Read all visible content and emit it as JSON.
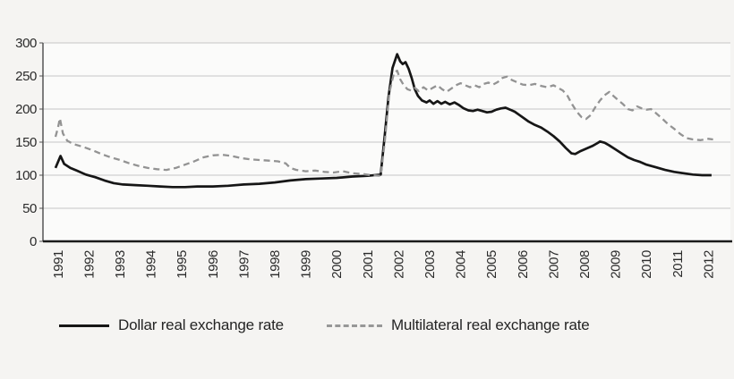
{
  "chart_data": {
    "type": "line",
    "title": "",
    "xlabel": "",
    "ylabel": "",
    "ylim": [
      0,
      300
    ],
    "yticks": [
      0,
      50,
      100,
      150,
      200,
      250,
      300
    ],
    "xticks": [
      1991,
      1992,
      1993,
      1994,
      1995,
      1996,
      1997,
      1998,
      1999,
      2000,
      2001,
      2002,
      2003,
      2004,
      2005,
      2006,
      2007,
      2008,
      2009,
      2010,
      2011,
      2012
    ],
    "grid": "horizontal",
    "legend_position": "bottom",
    "colors": {
      "background": "#f5f4f2",
      "plot_background": "#fbfbfa",
      "gridline": "#c6c6c6",
      "axis": "#1a1a1a",
      "dollar_line": "#161616",
      "multilateral_line": "#939393"
    },
    "series": [
      {
        "name": "Dollar real exchange rate",
        "style": "solid",
        "color": "#161616",
        "points": [
          [
            1991.42,
            111
          ],
          [
            1991.5,
            120
          ],
          [
            1991.58,
            129
          ],
          [
            1991.7,
            117
          ],
          [
            1991.9,
            111
          ],
          [
            1992.1,
            107
          ],
          [
            1992.4,
            101
          ],
          [
            1992.7,
            97
          ],
          [
            1993.0,
            92
          ],
          [
            1993.3,
            88
          ],
          [
            1993.6,
            86
          ],
          [
            1994.0,
            85
          ],
          [
            1994.4,
            84
          ],
          [
            1994.8,
            83
          ],
          [
            1995.2,
            82
          ],
          [
            1995.6,
            82
          ],
          [
            1996.0,
            83
          ],
          [
            1996.5,
            83
          ],
          [
            1997.0,
            84
          ],
          [
            1997.5,
            86
          ],
          [
            1998.0,
            87
          ],
          [
            1998.5,
            89
          ],
          [
            1999.0,
            92
          ],
          [
            1999.5,
            94
          ],
          [
            2000.0,
            95
          ],
          [
            2000.5,
            96
          ],
          [
            2001.0,
            98
          ],
          [
            2001.5,
            99
          ],
          [
            2001.92,
            101
          ],
          [
            2002.05,
            160
          ],
          [
            2002.17,
            218
          ],
          [
            2002.3,
            262
          ],
          [
            2002.45,
            283
          ],
          [
            2002.55,
            272
          ],
          [
            2002.63,
            268
          ],
          [
            2002.72,
            271
          ],
          [
            2002.82,
            261
          ],
          [
            2002.92,
            247
          ],
          [
            2003.02,
            230
          ],
          [
            2003.12,
            220
          ],
          [
            2003.25,
            213
          ],
          [
            2003.4,
            210
          ],
          [
            2003.5,
            213
          ],
          [
            2003.62,
            208
          ],
          [
            2003.75,
            212
          ],
          [
            2003.88,
            208
          ],
          [
            2004.0,
            211
          ],
          [
            2004.15,
            207
          ],
          [
            2004.3,
            210
          ],
          [
            2004.45,
            206
          ],
          [
            2004.6,
            201
          ],
          [
            2004.75,
            198
          ],
          [
            2004.9,
            197
          ],
          [
            2005.05,
            199
          ],
          [
            2005.2,
            197
          ],
          [
            2005.35,
            195
          ],
          [
            2005.5,
            196
          ],
          [
            2005.65,
            199
          ],
          [
            2005.8,
            201
          ],
          [
            2005.95,
            202
          ],
          [
            2006.1,
            199
          ],
          [
            2006.25,
            196
          ],
          [
            2006.4,
            191
          ],
          [
            2006.55,
            186
          ],
          [
            2006.7,
            181
          ],
          [
            2006.9,
            176
          ],
          [
            2007.1,
            172
          ],
          [
            2007.3,
            166
          ],
          [
            2007.5,
            159
          ],
          [
            2007.7,
            151
          ],
          [
            2007.9,
            141
          ],
          [
            2008.08,
            133
          ],
          [
            2008.2,
            132
          ],
          [
            2008.35,
            136
          ],
          [
            2008.55,
            140
          ],
          [
            2008.75,
            144
          ],
          [
            2008.9,
            148
          ],
          [
            2009.0,
            151
          ],
          [
            2009.15,
            149
          ],
          [
            2009.3,
            145
          ],
          [
            2009.5,
            139
          ],
          [
            2009.7,
            133
          ],
          [
            2009.9,
            127
          ],
          [
            2010.1,
            123
          ],
          [
            2010.3,
            120
          ],
          [
            2010.5,
            116
          ],
          [
            2010.8,
            112
          ],
          [
            2011.1,
            108
          ],
          [
            2011.4,
            105
          ],
          [
            2011.7,
            103
          ],
          [
            2012.0,
            101
          ],
          [
            2012.3,
            100
          ],
          [
            2012.6,
            100
          ]
        ]
      },
      {
        "name": "Multilateral real exchange rate",
        "style": "dashed",
        "color": "#939393",
        "points": [
          [
            1991.42,
            158
          ],
          [
            1991.5,
            172
          ],
          [
            1991.56,
            186
          ],
          [
            1991.66,
            163
          ],
          [
            1991.8,
            152
          ],
          [
            1992.0,
            147
          ],
          [
            1992.3,
            143
          ],
          [
            1992.6,
            138
          ],
          [
            1992.9,
            132
          ],
          [
            1993.2,
            127
          ],
          [
            1993.5,
            123
          ],
          [
            1993.8,
            118
          ],
          [
            1994.1,
            114
          ],
          [
            1994.4,
            111
          ],
          [
            1994.7,
            109
          ],
          [
            1995.0,
            108
          ],
          [
            1995.3,
            111
          ],
          [
            1995.6,
            116
          ],
          [
            1995.9,
            121
          ],
          [
            1996.2,
            127
          ],
          [
            1996.5,
            130
          ],
          [
            1996.8,
            131
          ],
          [
            1997.1,
            129
          ],
          [
            1997.4,
            126
          ],
          [
            1997.7,
            124
          ],
          [
            1998.0,
            123
          ],
          [
            1998.3,
            122
          ],
          [
            1998.6,
            121
          ],
          [
            1998.85,
            118
          ],
          [
            1999.0,
            111
          ],
          [
            1999.2,
            108
          ],
          [
            1999.5,
            106
          ],
          [
            1999.8,
            107
          ],
          [
            2000.1,
            105
          ],
          [
            2000.4,
            104
          ],
          [
            2000.7,
            106
          ],
          [
            2001.0,
            103
          ],
          [
            2001.3,
            102
          ],
          [
            2001.6,
            100
          ],
          [
            2001.92,
            99
          ],
          [
            2002.05,
            150
          ],
          [
            2002.2,
            225
          ],
          [
            2002.35,
            255
          ],
          [
            2002.45,
            258
          ],
          [
            2002.55,
            245
          ],
          [
            2002.65,
            237
          ],
          [
            2002.78,
            230
          ],
          [
            2002.9,
            228
          ],
          [
            2003.02,
            232
          ],
          [
            2003.15,
            227
          ],
          [
            2003.3,
            233
          ],
          [
            2003.45,
            228
          ],
          [
            2003.6,
            232
          ],
          [
            2003.75,
            236
          ],
          [
            2003.9,
            230
          ],
          [
            2004.05,
            226
          ],
          [
            2004.2,
            231
          ],
          [
            2004.35,
            236
          ],
          [
            2004.5,
            239
          ],
          [
            2004.65,
            236
          ],
          [
            2004.8,
            233
          ],
          [
            2004.95,
            236
          ],
          [
            2005.1,
            233
          ],
          [
            2005.25,
            238
          ],
          [
            2005.4,
            240
          ],
          [
            2005.55,
            237
          ],
          [
            2005.7,
            241
          ],
          [
            2005.85,
            247
          ],
          [
            2006.0,
            249
          ],
          [
            2006.15,
            244
          ],
          [
            2006.3,
            241
          ],
          [
            2006.5,
            237
          ],
          [
            2006.7,
            236
          ],
          [
            2006.9,
            238
          ],
          [
            2007.1,
            235
          ],
          [
            2007.3,
            233
          ],
          [
            2007.5,
            236
          ],
          [
            2007.65,
            232
          ],
          [
            2007.8,
            228
          ],
          [
            2007.95,
            220
          ],
          [
            2008.1,
            207
          ],
          [
            2008.25,
            196
          ],
          [
            2008.4,
            188
          ],
          [
            2008.55,
            185
          ],
          [
            2008.7,
            191
          ],
          [
            2008.85,
            203
          ],
          [
            2009.0,
            213
          ],
          [
            2009.15,
            221
          ],
          [
            2009.3,
            226
          ],
          [
            2009.45,
            219
          ],
          [
            2009.6,
            213
          ],
          [
            2009.75,
            207
          ],
          [
            2009.9,
            200
          ],
          [
            2010.05,
            198
          ],
          [
            2010.2,
            204
          ],
          [
            2010.35,
            201
          ],
          [
            2010.5,
            199
          ],
          [
            2010.65,
            200
          ],
          [
            2010.8,
            194
          ],
          [
            2011.0,
            186
          ],
          [
            2011.2,
            177
          ],
          [
            2011.4,
            170
          ],
          [
            2011.6,
            162
          ],
          [
            2011.8,
            156
          ],
          [
            2012.0,
            154
          ],
          [
            2012.25,
            153
          ],
          [
            2012.5,
            155
          ],
          [
            2012.65,
            154
          ]
        ]
      }
    ]
  }
}
